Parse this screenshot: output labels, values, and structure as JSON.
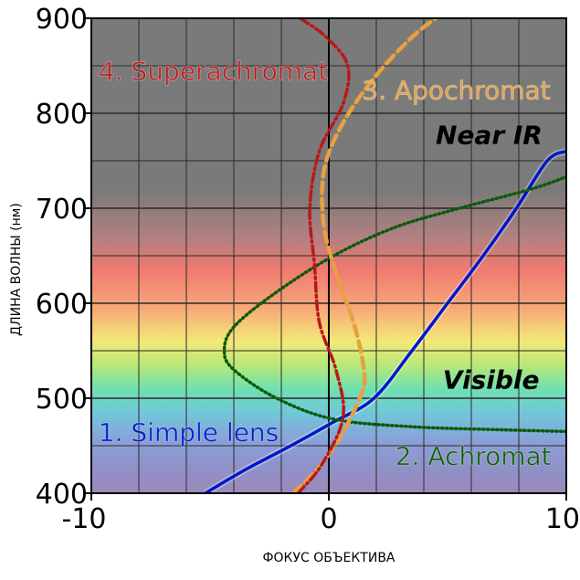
{
  "chart_data": {
    "type": "line",
    "xlabel": "ФОКУС ОБЪЕКТИВА",
    "ylabel": "ДЛИНА ВОЛНЫ (нм)",
    "xlim": [
      -10,
      10
    ],
    "ylim": [
      400,
      900
    ],
    "x_ticks": [
      "-10",
      "0",
      "10"
    ],
    "y_ticks": [
      "400",
      "500",
      "600",
      "700",
      "800",
      "900"
    ],
    "x_tick_values": [
      -10,
      0,
      10
    ],
    "y_tick_values": [
      400,
      500,
      600,
      700,
      800,
      900
    ],
    "grid": true,
    "minor_grid_step": {
      "x": 2,
      "y": 50
    },
    "vertical_zero_line": true,
    "regions": [
      {
        "label": "Visible",
        "range_nm": [
          400,
          700
        ]
      },
      {
        "label": "Near IR",
        "range_nm": [
          700,
          900
        ]
      }
    ],
    "series": [
      {
        "name": "1. Simple lens",
        "color": "#0018c8",
        "style": "solid",
        "points": [
          [
            -5.2,
            400
          ],
          [
            -3.5,
            425
          ],
          [
            -1.6,
            450
          ],
          [
            0.2,
            475
          ],
          [
            1.9,
            500
          ],
          [
            3.5,
            550
          ],
          [
            5.0,
            600
          ],
          [
            6.5,
            650
          ],
          [
            7.9,
            700
          ],
          [
            9.2,
            750
          ],
          [
            10.0,
            760
          ]
        ]
      },
      {
        "name": "2. Achromat",
        "color": "#0a5a0a",
        "style": "dotted",
        "points": [
          [
            10.0,
            465
          ],
          [
            7.0,
            467
          ],
          [
            3.5,
            470
          ],
          [
            0.2,
            478
          ],
          [
            -2.2,
            500
          ],
          [
            -4.0,
            530
          ],
          [
            -4.4,
            550
          ],
          [
            -4.0,
            575
          ],
          [
            -2.3,
            610
          ],
          [
            0.2,
            650
          ],
          [
            2.8,
            680
          ],
          [
            5.5,
            700
          ],
          [
            8.5,
            720
          ],
          [
            10.0,
            733
          ]
        ]
      },
      {
        "name": "3. Apochromat",
        "color": "#e8a040",
        "style": "dashed",
        "points": [
          [
            -1.5,
            400
          ],
          [
            -0.5,
            425
          ],
          [
            0.5,
            460
          ],
          [
            1.3,
            500
          ],
          [
            1.5,
            525
          ],
          [
            1.1,
            575
          ],
          [
            0.4,
            625
          ],
          [
            -0.2,
            680
          ],
          [
            -0.2,
            740
          ],
          [
            0.6,
            790
          ],
          [
            2.0,
            840
          ],
          [
            3.5,
            880
          ],
          [
            4.5,
            900
          ]
        ]
      },
      {
        "name": "4. Superachromat",
        "color": "#b81818",
        "style": "dashdot",
        "points": [
          [
            -1.3,
            400
          ],
          [
            -0.3,
            430
          ],
          [
            0.6,
            480
          ],
          [
            0.3,
            530
          ],
          [
            -0.4,
            580
          ],
          [
            -0.6,
            640
          ],
          [
            -0.8,
            700
          ],
          [
            -0.4,
            760
          ],
          [
            0.6,
            810
          ],
          [
            0.8,
            850
          ],
          [
            -0.1,
            880
          ],
          [
            -1.2,
            900
          ]
        ]
      }
    ],
    "series_labels": [
      {
        "text": "1. Simple lens",
        "color": "#0018c8",
        "x": -9.7,
        "y": 455
      },
      {
        "text": "2. Achromat",
        "color": "#0a5a0a",
        "x": 2.8,
        "y": 430
      },
      {
        "text": "3. Apochromat",
        "color": "#e8a040",
        "x": 1.4,
        "y": 815
      },
      {
        "text": "4. Superachromat",
        "color": "#b81818",
        "x": -9.7,
        "y": 835
      }
    ],
    "region_labels": [
      {
        "text": "Visible",
        "x": 4.8,
        "y": 510
      },
      {
        "text": "Near IR",
        "x": 4.5,
        "y": 768
      }
    ]
  }
}
